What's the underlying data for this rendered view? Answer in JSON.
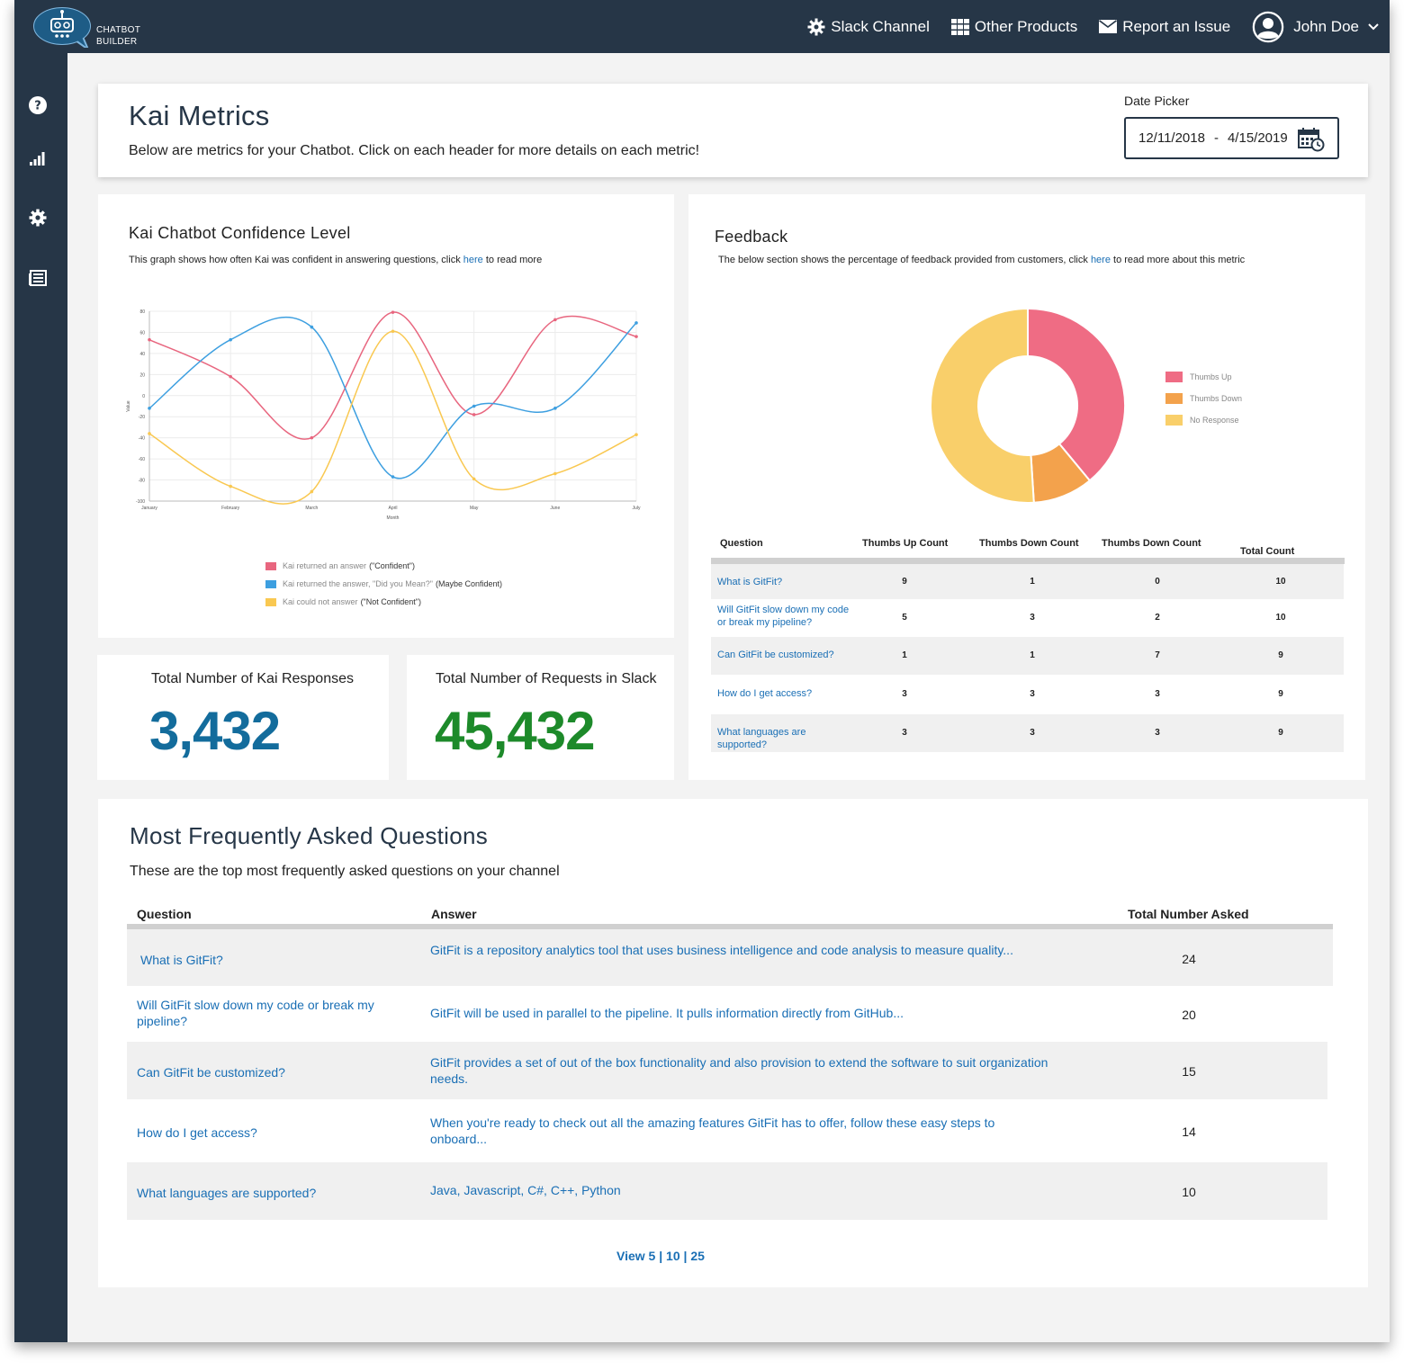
{
  "app": {
    "logo_line1": "CHATBOT",
    "logo_line2": "BUILDER"
  },
  "nav": {
    "slack": "Slack Channel",
    "products": "Other Products",
    "report": "Report an Issue",
    "user": "John Doe"
  },
  "header": {
    "title": "Kai Metrics",
    "subtitle": "Below are metrics for your Chatbot. Click on each header for more details on each metric!",
    "date_label": "Date Picker",
    "date_start": "12/11/2018",
    "date_sep": "-",
    "date_end": "4/15/2019"
  },
  "confidence": {
    "title": "Kai Chatbot Confidence Level",
    "desc_pre": "This graph shows how often Kai was confident in answering questions, click ",
    "desc_link": "here",
    "desc_post": " to read more",
    "legend": [
      {
        "pre": "Kai returned an answer",
        "bold": "(\"Confident\")",
        "color": "#e8667f"
      },
      {
        "pre": "Kai returned the answer, \"Did you Mean?\"",
        "bold": "(Maybe Confident)",
        "color": "#3d9fe0"
      },
      {
        "pre": "Kai could not answer",
        "bold": "(\"Not Confident\")",
        "color": "#f9c851"
      }
    ]
  },
  "chart_data": [
    {
      "type": "line",
      "categories": [
        "January",
        "February",
        "March",
        "April",
        "May",
        "June",
        "July"
      ],
      "xlabel": "Month",
      "ylabel": "Value",
      "ylim": [
        -100,
        80
      ],
      "yticks": [
        "80",
        "60",
        "40",
        "20",
        "0",
        "-20",
        "-40",
        "-60",
        "-80",
        "-100"
      ],
      "grid": true,
      "series": [
        {
          "name": "Kai returned an answer (\"Confident\")",
          "color": "#e8667f",
          "values": [
            53,
            18,
            -40,
            79,
            -18,
            72,
            56
          ]
        },
        {
          "name": "Kai returned the answer, \"Did you Mean?\" (Maybe Confident)",
          "color": "#3d9fe0",
          "values": [
            -12,
            53,
            65,
            -77,
            -10,
            -12,
            69
          ]
        },
        {
          "name": "Kai could not answer (\"Not Confident\")",
          "color": "#f9c851",
          "values": [
            -36,
            -86,
            -91,
            61,
            -79,
            -74,
            -37
          ]
        }
      ]
    },
    {
      "type": "pie",
      "categories": [
        "Thumbs Up",
        "Thumbs Down",
        "No Response"
      ],
      "values": [
        39,
        10,
        51
      ],
      "colors": [
        "#ef6c84",
        "#f3a24c",
        "#f9cf6a"
      ]
    }
  ],
  "stats": {
    "responses_label": "Total Number of Kai Responses",
    "responses_value": "3,432",
    "requests_label": "Total Number of Requests in Slack",
    "requests_value": "45,432"
  },
  "feedback": {
    "title": "Feedback",
    "desc_pre": "The below section shows the percentage of feedback provided from customers, click ",
    "desc_link": "here",
    "desc_post": " to read more about this metric",
    "legend": [
      "Thumbs Up",
      "Thumbs Down",
      "No Response"
    ],
    "columns": [
      "Question",
      "Thumbs Up Count",
      "Thumbs Down Count",
      "Thumbs Down Count",
      "Total Count"
    ],
    "rows": [
      {
        "q": "What is GitFit?",
        "up": "9",
        "down": "1",
        "down2": "0",
        "total": "10"
      },
      {
        "q": "Will GitFit slow down my code or break my pipeline?",
        "up": "5",
        "down": "3",
        "down2": "2",
        "total": "10"
      },
      {
        "q": "Can GitFit be customized?",
        "up": "1",
        "down": "1",
        "down2": "7",
        "total": "9"
      },
      {
        "q": "How do I get access?",
        "up": "3",
        "down": "3",
        "down2": "3",
        "total": "9"
      },
      {
        "q": "What languages are supported?",
        "up": "3",
        "down": "3",
        "down2": "3",
        "total": "9"
      }
    ]
  },
  "faq": {
    "title": "Most Frequently Asked Questions",
    "subtitle": "These are the top most frequently asked questions on your channel",
    "columns": [
      "Question",
      "Answer",
      "Total Number Asked"
    ],
    "rows": [
      {
        "q": "What is GitFit?",
        "a": "GitFit is a repository analytics tool that uses business intelligence and code analysis to measure quality...",
        "n": "24"
      },
      {
        "q": "Will GitFit slow down my code or break my pipeline?",
        "a": "GitFit will be used in parallel to the pipeline. It pulls information directly from GitHub...",
        "n": "20"
      },
      {
        "q": "Can GitFit be customized?",
        "a": "GitFit provides a set of out of the box functionality and also provision to extend the software to suit organization needs.",
        "n": "15"
      },
      {
        "q": "How do I get access?",
        "a": "When you're ready to check out all the amazing features GitFit has to offer, follow these easy steps to onboard...",
        "n": "14"
      },
      {
        "q": "What languages are supported?",
        "a": "Java, Javascript, C#, C++, Python",
        "n": "10"
      }
    ],
    "pager": {
      "prefix": "View",
      "opt1": "5",
      "opt2": "10",
      "opt3": "25",
      "sep": "|"
    }
  },
  "colors": {
    "navy": "#263647",
    "link": "#1a6fb5",
    "responses": "#136c9c",
    "requests": "#1d8a2a"
  },
  "icons": [
    "robot-logo-icon",
    "gear-icon",
    "grid-icon",
    "envelope-icon",
    "user-avatar-icon",
    "chevron-down-icon",
    "help-icon",
    "signal-bars-icon",
    "settings-icon",
    "list-icon",
    "calendar-icon"
  ]
}
